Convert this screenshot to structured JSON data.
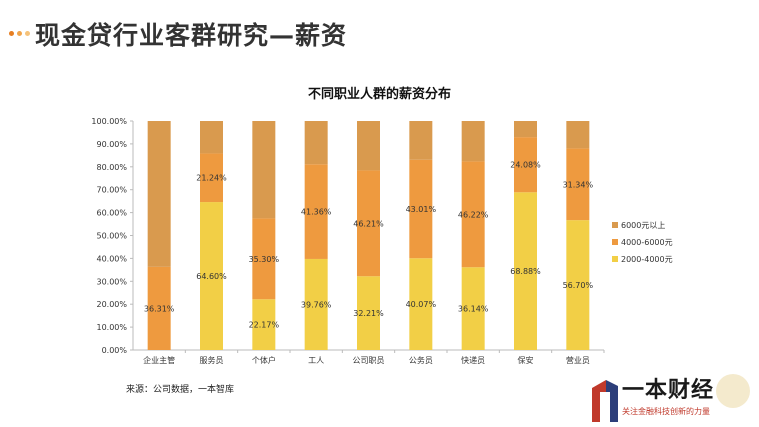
{
  "page": {
    "title": "现金贷行业客群研究—薪资",
    "dot_colors": [
      "#e67e22",
      "#f0a44b",
      "#f5c27a"
    ]
  },
  "footer": {
    "source": "来源：公司数据，一本智库"
  },
  "brand": {
    "name": "一本财经",
    "slogan": "关注金融科技创新的力量"
  },
  "chart_data": {
    "type": "bar",
    "stacked": true,
    "title": "不同职业人群的薪资分布",
    "categories": [
      "企业主管",
      "服务员",
      "个体户",
      "工人",
      "公司职员",
      "公务员",
      "快递员",
      "保安",
      "营业员"
    ],
    "series": [
      {
        "name": "2000-4000元",
        "color": "#f2cf46",
        "values": [
          0,
          64.6,
          22.17,
          39.76,
          32.21,
          40.07,
          36.14,
          68.88,
          56.7
        ]
      },
      {
        "name": "4000-6000元",
        "color": "#ee9a3f",
        "values": [
          36.31,
          21.24,
          35.3,
          41.36,
          46.21,
          43.01,
          46.22,
          24.08,
          31.34
        ]
      },
      {
        "name": "6000元以上",
        "color": "#d99a4e",
        "values": [
          63.69,
          14.16,
          42.53,
          18.88,
          21.58,
          16.92,
          17.64,
          7.04,
          11.96
        ]
      }
    ],
    "data_labels": [
      [
        "0",
        "64.60%",
        "22.17%",
        "39.76%",
        "32.21%",
        "40.07%",
        "36.14%",
        "68.88%",
        "56.70%"
      ],
      [
        "36.31%",
        "21.24%",
        "35.30%",
        "41.36%",
        "46.21%",
        "43.01%",
        "46.22%",
        "24.08%",
        "31.34%"
      ]
    ],
    "legend_order": [
      "6000元以上",
      "4000-6000元",
      "2000-4000元"
    ],
    "legend_position": "right",
    "y_ticks": [
      "0.00%",
      "10.00%",
      "20.00%",
      "30.00%",
      "40.00%",
      "50.00%",
      "60.00%",
      "70.00%",
      "80.00%",
      "90.00%",
      "100.00%"
    ],
    "ylim": [
      0,
      100
    ],
    "grid": false
  }
}
